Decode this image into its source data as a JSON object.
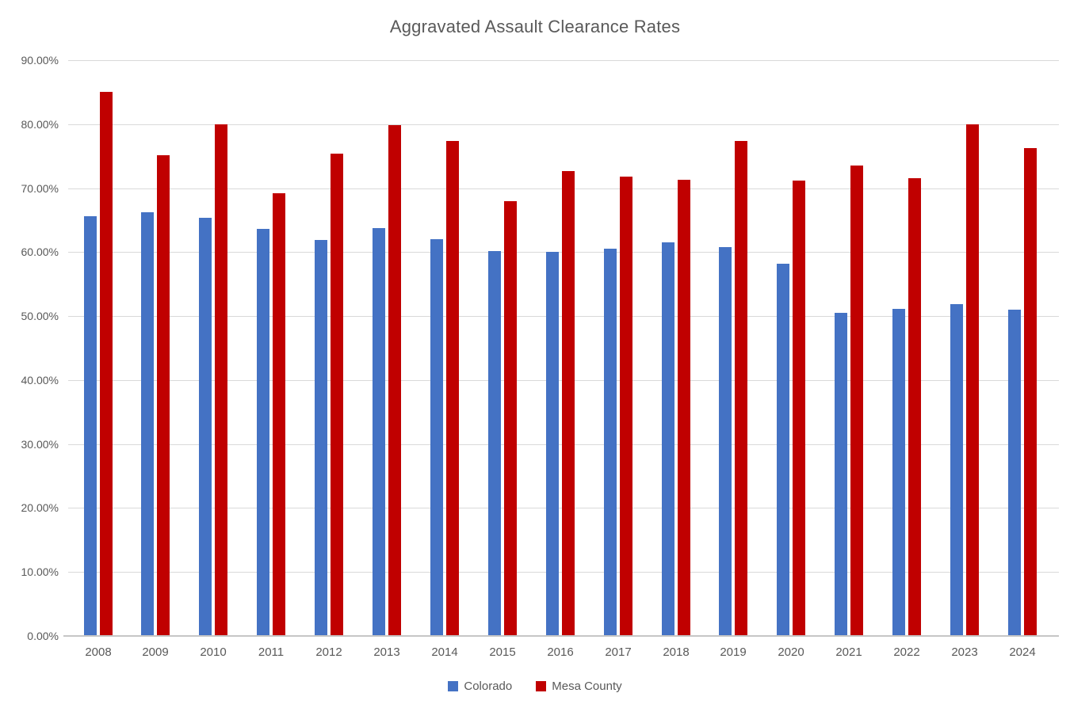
{
  "chart_data": {
    "type": "bar",
    "title": "Aggravated Assault Clearance Rates",
    "categories": [
      "2008",
      "2009",
      "2010",
      "2011",
      "2012",
      "2013",
      "2014",
      "2015",
      "2016",
      "2017",
      "2018",
      "2019",
      "2020",
      "2021",
      "2022",
      "2023",
      "2024"
    ],
    "series": [
      {
        "name": "Colorado",
        "color": "#4472C4",
        "values": [
          65.6,
          66.2,
          65.4,
          63.6,
          61.9,
          63.8,
          62.0,
          60.2,
          60.1,
          60.5,
          61.5,
          60.8,
          58.2,
          50.5,
          51.1,
          51.9,
          51.0
        ]
      },
      {
        "name": "Mesa County",
        "color": "#C00000",
        "values": [
          85.0,
          75.1,
          80.0,
          69.2,
          75.4,
          79.8,
          77.4,
          68.0,
          72.7,
          71.8,
          71.3,
          77.4,
          71.2,
          73.5,
          71.6,
          80.0,
          76.3
        ]
      }
    ],
    "xlabel": "",
    "ylabel": "",
    "ylim": [
      0,
      90
    ],
    "ytick_step": 10,
    "ytick_labels": [
      "0.00%",
      "10.00%",
      "20.00%",
      "30.00%",
      "40.00%",
      "50.00%",
      "60.00%",
      "70.00%",
      "80.00%",
      "90.00%"
    ],
    "grid": true,
    "legend_position": "bottom",
    "colors": {
      "title_text": "#595959",
      "axis_text": "#595959",
      "gridline": "#D9D9D9",
      "axis_line": "#C6C6C6",
      "background": "#FFFFFF"
    }
  }
}
